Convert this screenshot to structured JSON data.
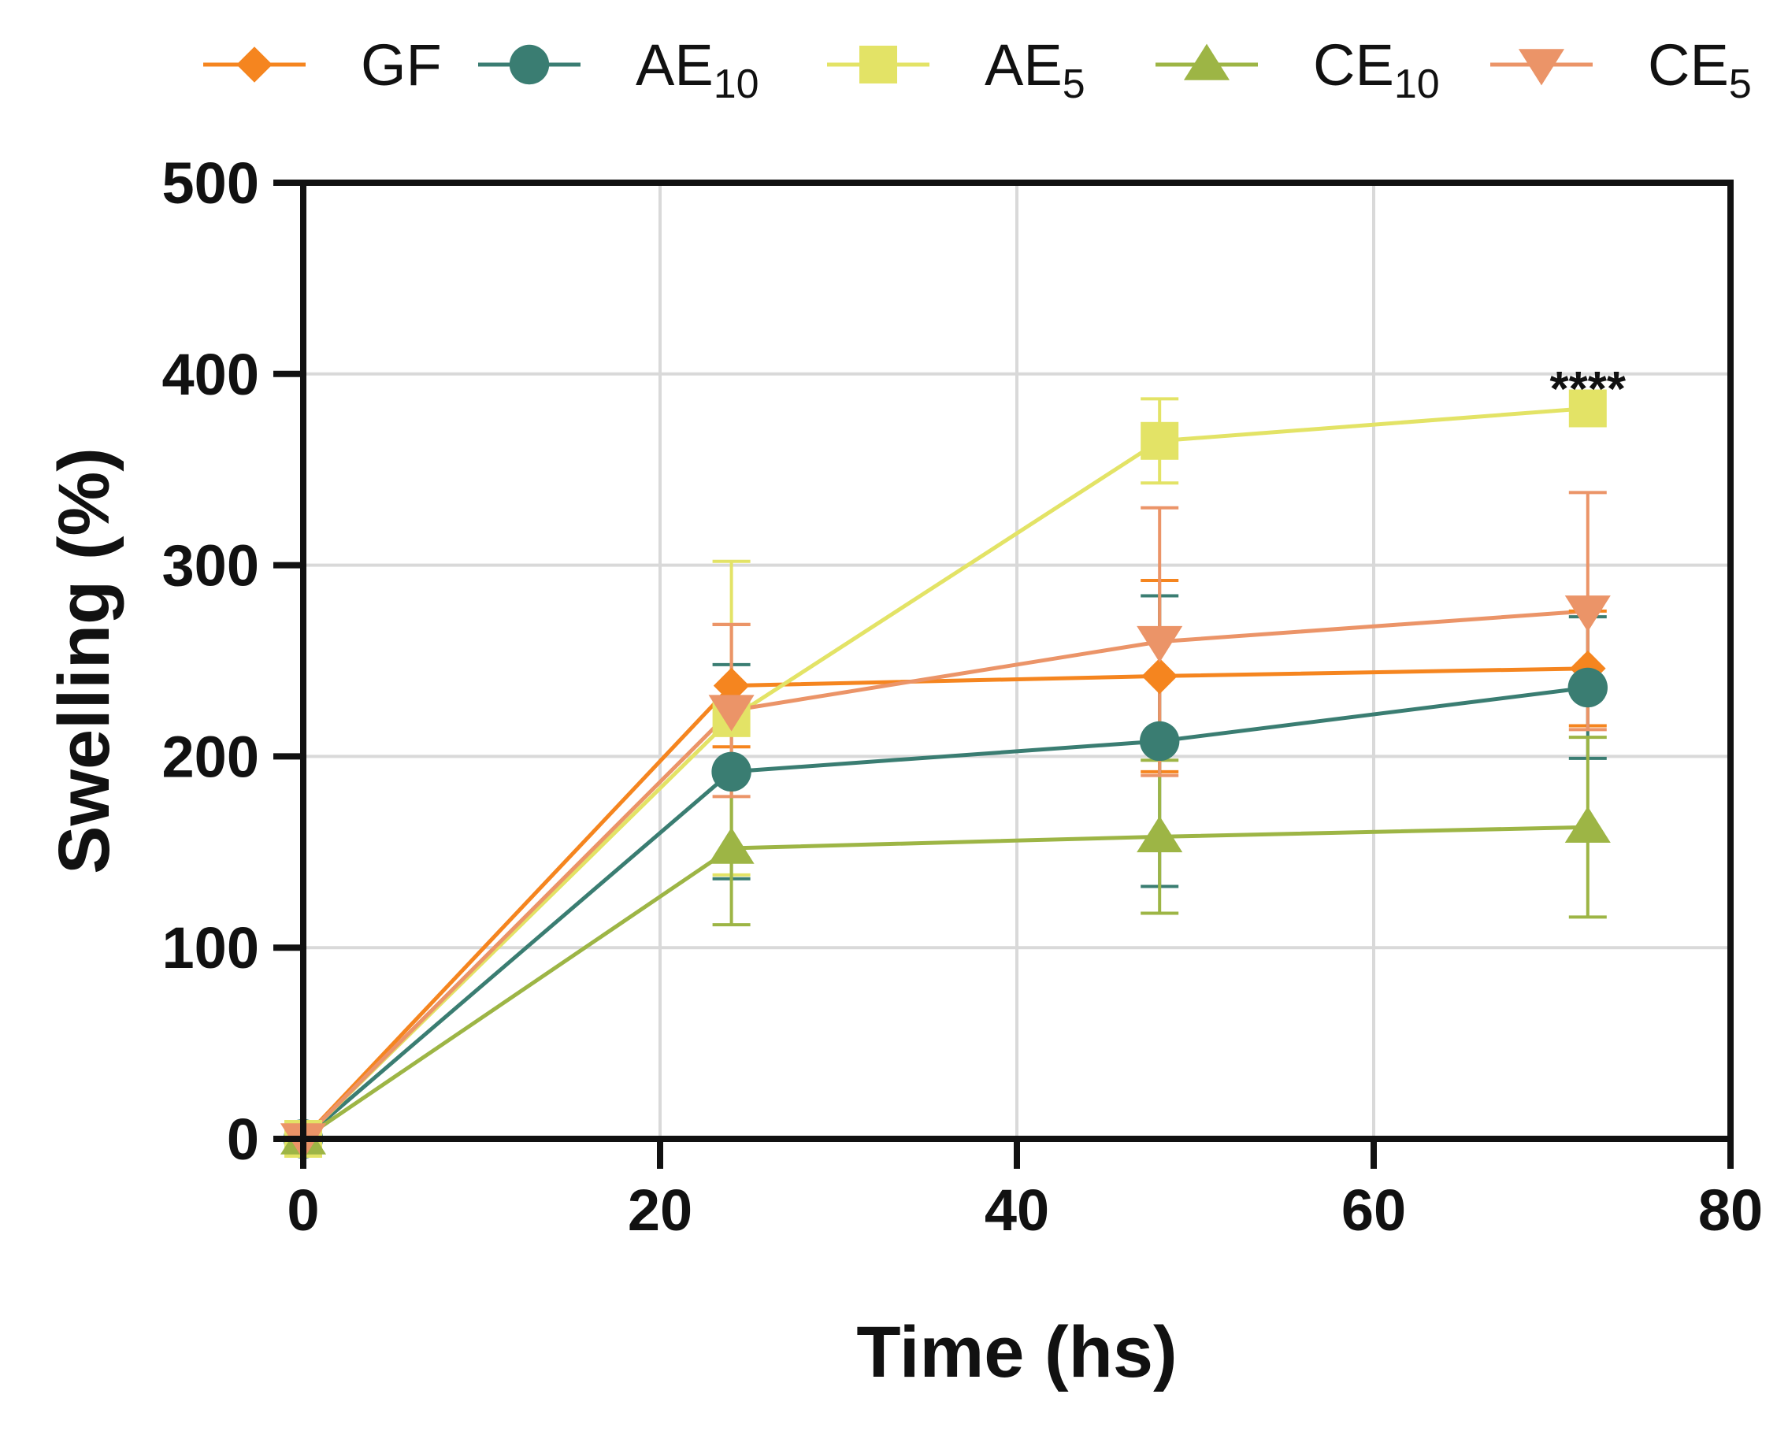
{
  "chart_data": {
    "type": "line",
    "xlabel": "Time (hs)",
    "ylabel": "Swelling (%)",
    "xlim": [
      0,
      80
    ],
    "ylim": [
      0,
      500
    ],
    "xticks": [
      0,
      20,
      40,
      60,
      80
    ],
    "yticks": [
      0,
      100,
      200,
      300,
      400,
      500
    ],
    "grid": true,
    "legend_position": "top",
    "x": [
      0,
      24,
      48,
      72
    ],
    "series": [
      {
        "name": "GF",
        "label_main": "GF",
        "label_sub": "",
        "color": "#F5851F",
        "marker": "diamond",
        "values": [
          0,
          237,
          242,
          246
        ],
        "errors": [
          0,
          32,
          50,
          30
        ]
      },
      {
        "name": "AE10",
        "label_main": "AE",
        "label_sub": "10",
        "color": "#3A7D72",
        "marker": "circle",
        "values": [
          0,
          192,
          208,
          236
        ],
        "errors": [
          0,
          56,
          76,
          37
        ]
      },
      {
        "name": "AE5",
        "label_main": "AE",
        "label_sub": "5",
        "color": "#E3E366",
        "marker": "square",
        "values": [
          0,
          220,
          365,
          382
        ],
        "errors": [
          0,
          82,
          22,
          0
        ]
      },
      {
        "name": "CE10",
        "label_main": "CE",
        "label_sub": "10",
        "color": "#9DB545",
        "marker": "triangle-up",
        "values": [
          0,
          152,
          158,
          163
        ],
        "errors": [
          0,
          40,
          40,
          47
        ]
      },
      {
        "name": "CE5",
        "label_main": "CE",
        "label_sub": "5",
        "color": "#EB9468",
        "marker": "triangle-down",
        "values": [
          0,
          224,
          260,
          276
        ],
        "errors": [
          0,
          45,
          70,
          62
        ]
      }
    ],
    "annotations": [
      {
        "text": "****",
        "x": 72,
        "y": 400
      }
    ]
  }
}
